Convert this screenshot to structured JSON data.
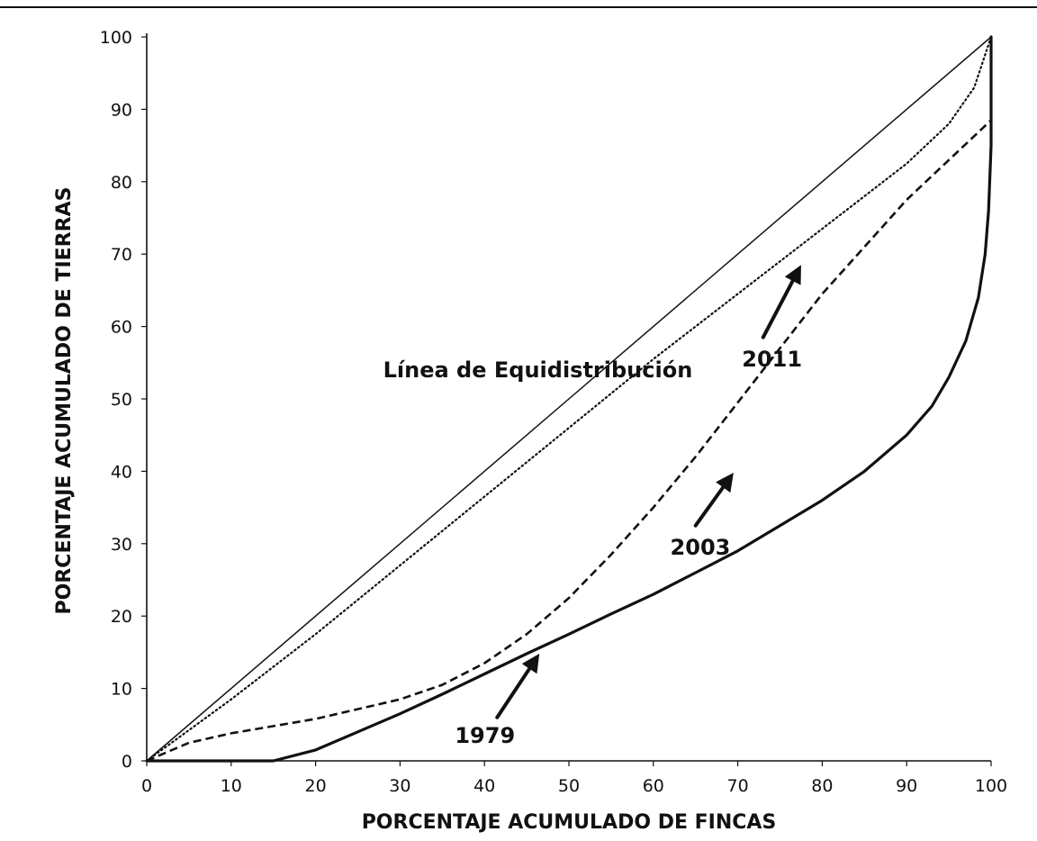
{
  "chart_data": {
    "type": "line",
    "title": "",
    "xlabel": "PORCENTAJE ACUMULADO DE FINCAS",
    "ylabel": "PORCENTAJE ACUMULADO DE TIERRAS",
    "xlim": [
      0,
      100
    ],
    "ylim": [
      0,
      100
    ],
    "xticks": [
      0,
      10,
      20,
      30,
      40,
      50,
      60,
      70,
      80,
      90,
      100
    ],
    "yticks": [
      0,
      10,
      20,
      30,
      40,
      50,
      60,
      70,
      80,
      90,
      100
    ],
    "grid": false,
    "series": [
      {
        "name": "Línea de Equidistribución",
        "style": "solid-thin",
        "x": [
          0,
          100
        ],
        "y": [
          0,
          100
        ]
      },
      {
        "name": "2011",
        "style": "dotted",
        "x": [
          0,
          10,
          20,
          30,
          40,
          50,
          60,
          70,
          80,
          90,
          95,
          98,
          100
        ],
        "y": [
          0,
          8.5,
          17.5,
          27,
          36.5,
          46,
          55.5,
          64.5,
          73.5,
          82.5,
          88,
          93,
          100
        ]
      },
      {
        "name": "2003",
        "style": "dashed",
        "x": [
          0,
          5,
          10,
          20,
          30,
          35,
          40,
          45,
          50,
          55,
          60,
          65,
          70,
          75,
          80,
          85,
          90,
          95,
          100
        ],
        "y": [
          0,
          2.5,
          3.8,
          5.8,
          8.5,
          10.5,
          13.5,
          17.5,
          22.5,
          28.5,
          35,
          42,
          49.5,
          57,
          64.5,
          71,
          77.5,
          83,
          88.5
        ]
      },
      {
        "name": "1979",
        "style": "solid-thick",
        "x": [
          0,
          5,
          10,
          15,
          20,
          25,
          30,
          35,
          40,
          45,
          50,
          55,
          60,
          65,
          70,
          75,
          80,
          85,
          90,
          93,
          95,
          97,
          98.5,
          99.3,
          99.7,
          100,
          100,
          100
        ],
        "y": [
          0,
          0,
          0,
          0,
          1.5,
          4,
          6.5,
          9.2,
          12,
          14.8,
          17.5,
          20.3,
          23,
          26,
          29,
          32.5,
          36,
          40,
          45,
          49,
          53,
          58,
          64,
          70,
          76,
          85,
          92,
          100
        ]
      }
    ],
    "annotations": [
      {
        "text": "Línea de Equidistribución",
        "x": 28,
        "y": 53,
        "size": 24
      },
      {
        "text": "2011",
        "x": 70.5,
        "y": 54.5,
        "size": 24,
        "arrow_from": [
          73,
          58.5
        ],
        "arrow_to": [
          77.5,
          68.5
        ]
      },
      {
        "text": "2003",
        "x": 62,
        "y": 28.5,
        "size": 24,
        "arrow_from": [
          65,
          32.5
        ],
        "arrow_to": [
          69.5,
          39.8
        ]
      },
      {
        "text": "1979",
        "x": 36.5,
        "y": 2.5,
        "size": 24,
        "arrow_from": [
          41.5,
          6
        ],
        "arrow_to": [
          46.5,
          14.8
        ]
      }
    ]
  }
}
